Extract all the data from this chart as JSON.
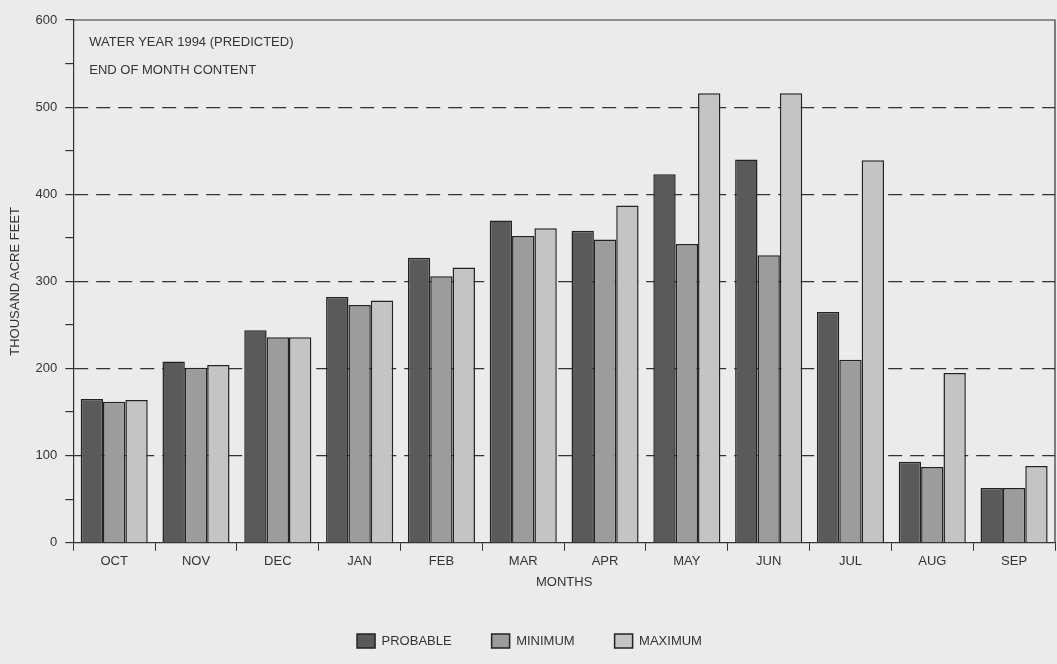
{
  "chart_data": {
    "type": "bar",
    "title": "WATER YEAR 1994 (PREDICTED)",
    "subtitle": "END OF MONTH CONTENT",
    "xlabel": "MONTHS",
    "ylabel": "THOUSAND ACRE FEET",
    "categories": [
      "OCT",
      "NOV",
      "DEC",
      "JAN",
      "FEB",
      "MAR",
      "APR",
      "MAY",
      "JUN",
      "JUL",
      "AUG",
      "SEP"
    ],
    "series": [
      {
        "name": "PROBABLE",
        "color": "#5a5a5a",
        "values": [
          165,
          208,
          244,
          282,
          327,
          370,
          358,
          423,
          440,
          265,
          93,
          63
        ]
      },
      {
        "name": "MINIMUM",
        "color": "#9c9c9c",
        "values": [
          162,
          201,
          236,
          273,
          306,
          352,
          348,
          343,
          330,
          210,
          87,
          63
        ]
      },
      {
        "name": "MAXIMUM",
        "color": "#c4c4c4",
        "values": [
          164,
          204,
          236,
          278,
          316,
          361,
          387,
          516,
          516,
          439,
          195,
          88
        ]
      }
    ],
    "ylim": [
      0,
      600
    ],
    "yticks": [
      0,
      {
        "value": 50,
        "label": null
      },
      100,
      {
        "value": 150,
        "label": null
      },
      200,
      {
        "value": 250,
        "label": null
      },
      300,
      {
        "value": 350,
        "label": null
      },
      400,
      {
        "value": 450,
        "label": null
      },
      500,
      {
        "value": 550,
        "label": null
      },
      600
    ],
    "grid": "y",
    "legend": "bottom",
    "line_style": "dashed"
  }
}
